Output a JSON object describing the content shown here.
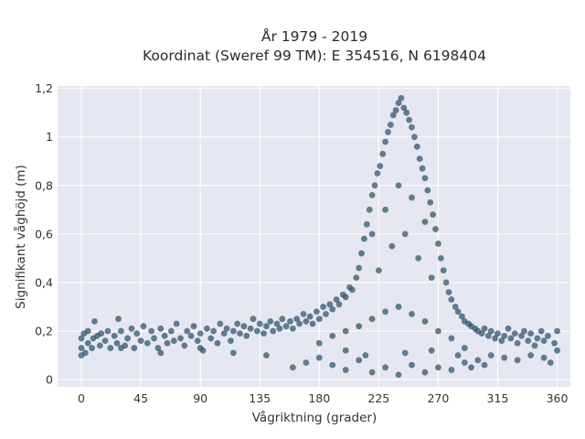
{
  "chart_data": {
    "type": "scatter",
    "title_line1": "År 1979 - 2019",
    "title_line2": "Koordinat (Sweref 99 TM): E 354516, N 6198404",
    "xlabel": "Vågriktning (grader)",
    "ylabel": "Signifikant våghöjd (m)",
    "xlim": [
      -18,
      370
    ],
    "ylim": [
      -0.03,
      1.21
    ],
    "xticks": [
      0,
      45,
      90,
      135,
      180,
      225,
      270,
      315,
      360
    ],
    "yticks": [
      0,
      0.2,
      0.4,
      0.6,
      0.8,
      1,
      1.2
    ],
    "ytick_labels": [
      "0",
      "0,2",
      "0,4",
      "0,6",
      "0,8",
      "1",
      "1,2"
    ],
    "grid": true,
    "plot_background": "#E5E8F0",
    "marker_color": "#2C5068",
    "marker_opacity": 0.72,
    "series": [
      {
        "points": [
          [
            0,
            0.1
          ],
          [
            0,
            0.13
          ],
          [
            0,
            0.17
          ],
          [
            2,
            0.19
          ],
          [
            3,
            0.11
          ],
          [
            5,
            0.15
          ],
          [
            5,
            0.2
          ],
          [
            8,
            0.13
          ],
          [
            9,
            0.17
          ],
          [
            10,
            0.24
          ],
          [
            12,
            0.18
          ],
          [
            14,
            0.14
          ],
          [
            15,
            0.19
          ],
          [
            18,
            0.16
          ],
          [
            20,
            0.2
          ],
          [
            22,
            0.13
          ],
          [
            25,
            0.18
          ],
          [
            27,
            0.15
          ],
          [
            28,
            0.25
          ],
          [
            30,
            0.2
          ],
          [
            33,
            0.14
          ],
          [
            35,
            0.17
          ],
          [
            38,
            0.21
          ],
          [
            40,
            0.13
          ],
          [
            42,
            0.19
          ],
          [
            45,
            0.16
          ],
          [
            47,
            0.22
          ],
          [
            50,
            0.15
          ],
          [
            53,
            0.2
          ],
          [
            55,
            0.17
          ],
          [
            58,
            0.13
          ],
          [
            60,
            0.21
          ],
          [
            63,
            0.18
          ],
          [
            65,
            0.15
          ],
          [
            68,
            0.2
          ],
          [
            70,
            0.16
          ],
          [
            72,
            0.23
          ],
          [
            75,
            0.17
          ],
          [
            78,
            0.14
          ],
          [
            80,
            0.2
          ],
          [
            83,
            0.18
          ],
          [
            85,
            0.22
          ],
          [
            88,
            0.16
          ],
          [
            90,
            0.19
          ],
          [
            92,
            0.12
          ],
          [
            95,
            0.21
          ],
          [
            98,
            0.17
          ],
          [
            100,
            0.2
          ],
          [
            103,
            0.15
          ],
          [
            105,
            0.23
          ],
          [
            108,
            0.19
          ],
          [
            110,
            0.21
          ],
          [
            113,
            0.16
          ],
          [
            115,
            0.2
          ],
          [
            118,
            0.23
          ],
          [
            120,
            0.19
          ],
          [
            123,
            0.22
          ],
          [
            125,
            0.18
          ],
          [
            128,
            0.21
          ],
          [
            130,
            0.25
          ],
          [
            133,
            0.2
          ],
          [
            135,
            0.23
          ],
          [
            138,
            0.19
          ],
          [
            140,
            0.22
          ],
          [
            143,
            0.24
          ],
          [
            145,
            0.2
          ],
          [
            148,
            0.23
          ],
          [
            150,
            0.21
          ],
          [
            152,
            0.25
          ],
          [
            155,
            0.22
          ],
          [
            158,
            0.24
          ],
          [
            160,
            0.21
          ],
          [
            163,
            0.25
          ],
          [
            165,
            0.23
          ],
          [
            168,
            0.27
          ],
          [
            170,
            0.24
          ],
          [
            173,
            0.26
          ],
          [
            175,
            0.23
          ],
          [
            178,
            0.28
          ],
          [
            180,
            0.25
          ],
          [
            183,
            0.3
          ],
          [
            185,
            0.27
          ],
          [
            188,
            0.31
          ],
          [
            190,
            0.29
          ],
          [
            193,
            0.33
          ],
          [
            195,
            0.31
          ],
          [
            198,
            0.35
          ],
          [
            200,
            0.34
          ],
          [
            203,
            0.38
          ],
          [
            205,
            0.37
          ],
          [
            208,
            0.42
          ],
          [
            210,
            0.46
          ],
          [
            212,
            0.52
          ],
          [
            214,
            0.58
          ],
          [
            216,
            0.64
          ],
          [
            218,
            0.7
          ],
          [
            220,
            0.76
          ],
          [
            222,
            0.8
          ],
          [
            224,
            0.85
          ],
          [
            226,
            0.88
          ],
          [
            228,
            0.93
          ],
          [
            230,
            0.98
          ],
          [
            232,
            1.02
          ],
          [
            234,
            1.05
          ],
          [
            236,
            1.09
          ],
          [
            238,
            1.11
          ],
          [
            240,
            1.14
          ],
          [
            242,
            1.16
          ],
          [
            244,
            1.12
          ],
          [
            246,
            1.1
          ],
          [
            248,
            1.07
          ],
          [
            250,
            1.04
          ],
          [
            252,
            1.0
          ],
          [
            254,
            0.96
          ],
          [
            256,
            0.91
          ],
          [
            258,
            0.87
          ],
          [
            260,
            0.83
          ],
          [
            262,
            0.78
          ],
          [
            264,
            0.73
          ],
          [
            266,
            0.68
          ],
          [
            268,
            0.62
          ],
          [
            270,
            0.56
          ],
          [
            272,
            0.5
          ],
          [
            274,
            0.45
          ],
          [
            276,
            0.4
          ],
          [
            278,
            0.36
          ],
          [
            280,
            0.33
          ],
          [
            283,
            0.3
          ],
          [
            285,
            0.28
          ],
          [
            288,
            0.26
          ],
          [
            290,
            0.24
          ],
          [
            293,
            0.23
          ],
          [
            295,
            0.22
          ],
          [
            298,
            0.21
          ],
          [
            300,
            0.2
          ],
          [
            303,
            0.19
          ],
          [
            305,
            0.21
          ],
          [
            308,
            0.18
          ],
          [
            310,
            0.2
          ],
          [
            313,
            0.17
          ],
          [
            315,
            0.19
          ],
          [
            318,
            0.16
          ],
          [
            320,
            0.18
          ],
          [
            323,
            0.21
          ],
          [
            325,
            0.17
          ],
          [
            328,
            0.19
          ],
          [
            330,
            0.15
          ],
          [
            333,
            0.18
          ],
          [
            335,
            0.2
          ],
          [
            338,
            0.16
          ],
          [
            340,
            0.19
          ],
          [
            343,
            0.14
          ],
          [
            345,
            0.17
          ],
          [
            348,
            0.2
          ],
          [
            350,
            0.16
          ],
          [
            353,
            0.18
          ],
          [
            355,
            0.07
          ],
          [
            358,
            0.15
          ],
          [
            360,
            0.2
          ],
          [
            360,
            0.12
          ],
          [
            30,
            0.13
          ],
          [
            60,
            0.11
          ],
          [
            90,
            0.13
          ],
          [
            115,
            0.11
          ],
          [
            140,
            0.1
          ],
          [
            160,
            0.05
          ],
          [
            170,
            0.07
          ],
          [
            180,
            0.09
          ],
          [
            190,
            0.06
          ],
          [
            200,
            0.04
          ],
          [
            210,
            0.08
          ],
          [
            220,
            0.03
          ],
          [
            230,
            0.05
          ],
          [
            240,
            0.02
          ],
          [
            250,
            0.06
          ],
          [
            260,
            0.03
          ],
          [
            270,
            0.05
          ],
          [
            280,
            0.04
          ],
          [
            290,
            0.07
          ],
          [
            295,
            0.05
          ],
          [
            300,
            0.08
          ],
          [
            305,
            0.06
          ],
          [
            310,
            0.1
          ],
          [
            320,
            0.09
          ],
          [
            330,
            0.08
          ],
          [
            340,
            0.1
          ],
          [
            350,
            0.09
          ],
          [
            180,
            0.15
          ],
          [
            190,
            0.18
          ],
          [
            200,
            0.2
          ],
          [
            210,
            0.22
          ],
          [
            220,
            0.25
          ],
          [
            230,
            0.28
          ],
          [
            240,
            0.3
          ],
          [
            250,
            0.27
          ],
          [
            260,
            0.24
          ],
          [
            270,
            0.2
          ],
          [
            280,
            0.17
          ],
          [
            290,
            0.13
          ],
          [
            200,
            0.12
          ],
          [
            215,
            0.1
          ],
          [
            245,
            0.11
          ],
          [
            265,
            0.12
          ],
          [
            285,
            0.1
          ],
          [
            225,
            0.45
          ],
          [
            235,
            0.55
          ],
          [
            245,
            0.6
          ],
          [
            255,
            0.5
          ],
          [
            265,
            0.42
          ],
          [
            230,
            0.7
          ],
          [
            240,
            0.8
          ],
          [
            250,
            0.75
          ],
          [
            220,
            0.6
          ],
          [
            260,
            0.65
          ]
        ]
      }
    ]
  }
}
